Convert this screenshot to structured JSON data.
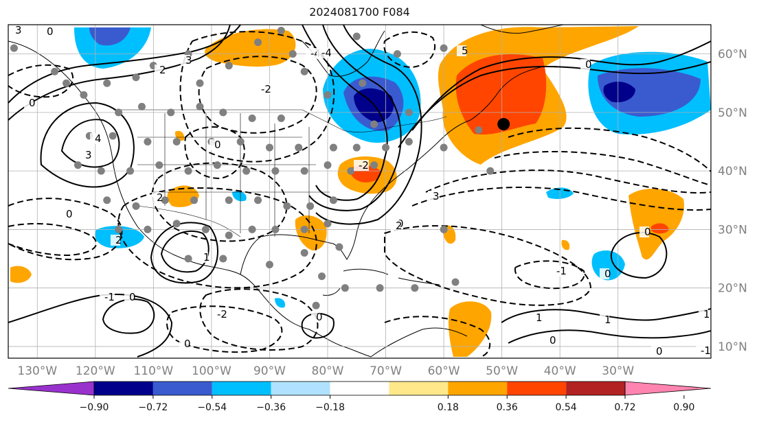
{
  "title": "2024081700 F084",
  "map": {
    "lon_range": [
      -135,
      -14
    ],
    "lat_range": [
      8,
      65
    ],
    "grid_lons": [
      -130,
      -120,
      -110,
      -100,
      -90,
      -80,
      -70,
      -60,
      -50,
      -40,
      -30
    ],
    "grid_lats": [
      10,
      20,
      30,
      40,
      50,
      60
    ],
    "lat_labels": [
      "10°N",
      "20°N",
      "30°N",
      "40°N",
      "50°N",
      "60°N"
    ],
    "lon_labels": [
      "130°W",
      "120°W",
      "110°W",
      "100°W",
      "90°W",
      "80°W",
      "70°W",
      "60°W",
      "50°W",
      "40°W",
      "30°W"
    ],
    "marker": {
      "lon": -49.7,
      "lat": 48.0,
      "color": "#000000"
    },
    "station_color": "#808080"
  },
  "colorbar": {
    "colors": [
      "#9932cc",
      "#00008b",
      "#3a5bd0",
      "#00bfff",
      "#b0e2ff",
      "#ffffff",
      "#ffe88a",
      "#ffa500",
      "#ff4500",
      "#b22222",
      "#ff85b0"
    ],
    "tick_labels": [
      "−0.90",
      "−0.72",
      "−0.54",
      "−0.36",
      "−0.18",
      "0.18",
      "0.36",
      "0.54",
      "0.72",
      "0.90"
    ]
  },
  "contour_labels": [
    "3",
    "0",
    "2",
    "3",
    "-4",
    "-2",
    "0",
    "5",
    "0",
    "2",
    "0",
    "-4",
    "3",
    "4",
    "0",
    "1",
    "2",
    "3",
    "-2",
    "0",
    "2",
    "-1",
    "0",
    "0",
    "1",
    "0",
    "0",
    "1",
    "-1",
    "0",
    "-2",
    "1",
    "0",
    "-1",
    "0"
  ]
}
